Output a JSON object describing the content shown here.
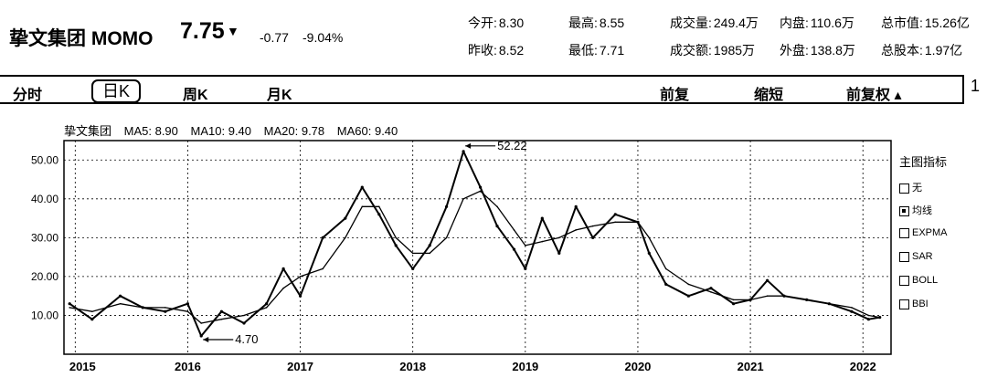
{
  "stock": {
    "name": "挚文集团 MOMO",
    "price": "7.75",
    "arrow": "▼",
    "change": "-0.77",
    "change_pct": "-9.04%"
  },
  "stats": [
    {
      "label": "今开:",
      "value": "8.30"
    },
    {
      "label": "最高:",
      "value": "8.55"
    },
    {
      "label": "成交量:",
      "value": "249.4万"
    },
    {
      "label": "内盘:",
      "value": "110.6万"
    },
    {
      "label": "总市值:",
      "value": "15.26亿"
    },
    {
      "label": "昨收:",
      "value": "8.52"
    },
    {
      "label": "最低:",
      "value": "7.71"
    },
    {
      "label": "成交额:",
      "value": "1985万"
    },
    {
      "label": "外盘:",
      "value": "138.8万"
    },
    {
      "label": "总股本:",
      "value": "1.97亿"
    }
  ],
  "toolbar": {
    "tabs": [
      "分时",
      "日K",
      "周K",
      "月K"
    ],
    "active_tab": "日K",
    "actions": [
      "前复",
      "缩短",
      "前复权 ▴"
    ],
    "edge_text": "1"
  },
  "ma_legend": [
    "挚文集团",
    "MA5: 8.90",
    "MA10: 9.40",
    "MA20: 9.78",
    "MA60: 9.40"
  ],
  "indicator_panel": {
    "title": "主图指标",
    "options": [
      {
        "label": "无",
        "checked": false
      },
      {
        "label": "均线",
        "checked": true
      },
      {
        "label": "EXPMA",
        "checked": false
      },
      {
        "label": "SAR",
        "checked": false
      },
      {
        "label": "BOLL",
        "checked": false
      },
      {
        "label": "BBI",
        "checked": false
      }
    ]
  },
  "chart_data": {
    "type": "line",
    "title": "",
    "xlabel": "",
    "ylabel": "",
    "y_ticks": [
      "10.00",
      "20.00",
      "30.00",
      "40.00",
      "50.00"
    ],
    "ylim": [
      0,
      55
    ],
    "x_ticks": [
      "2015",
      "2016",
      "2017",
      "2018",
      "2019",
      "2020",
      "2021",
      "2022"
    ],
    "x": [
      2014.95,
      2015.15,
      2015.4,
      2015.6,
      2015.8,
      2016.0,
      2016.12,
      2016.3,
      2016.5,
      2016.7,
      2016.85,
      2017.0,
      2017.2,
      2017.4,
      2017.55,
      2017.7,
      2017.85,
      2018.0,
      2018.15,
      2018.3,
      2018.45,
      2018.6,
      2018.75,
      2018.9,
      2019.0,
      2019.15,
      2019.3,
      2019.45,
      2019.6,
      2019.8,
      2020.0,
      2020.1,
      2020.25,
      2020.45,
      2020.65,
      2020.85,
      2021.0,
      2021.15,
      2021.3,
      2021.5,
      2021.7,
      2021.9,
      2022.05,
      2022.15
    ],
    "series": [
      {
        "values": [
          13,
          9,
          15,
          12,
          11,
          13,
          4.7,
          11,
          8,
          13,
          22,
          15,
          30,
          35,
          43,
          36,
          28,
          22,
          28,
          38,
          52.22,
          43,
          33,
          27,
          22,
          35,
          26,
          38,
          30,
          36,
          34,
          26,
          18,
          15,
          17,
          13,
          14,
          19,
          15,
          14,
          13,
          11,
          9,
          9.5
        ]
      },
      {
        "values": [
          12,
          11,
          13,
          12,
          12,
          11,
          8,
          9,
          10,
          12,
          17,
          20,
          22,
          30,
          38,
          38,
          30,
          26,
          26,
          30,
          40,
          42,
          38,
          32,
          28,
          29,
          30,
          32,
          33,
          34,
          34,
          30,
          22,
          18,
          16,
          14,
          14,
          15,
          15,
          14,
          13,
          12,
          10,
          9.5
        ]
      }
    ],
    "annotations": [
      {
        "text": "52.22",
        "x": 2018.45,
        "y": 52.22
      },
      {
        "text": "4.70",
        "x": 2016.12,
        "y": 4.7
      }
    ]
  }
}
